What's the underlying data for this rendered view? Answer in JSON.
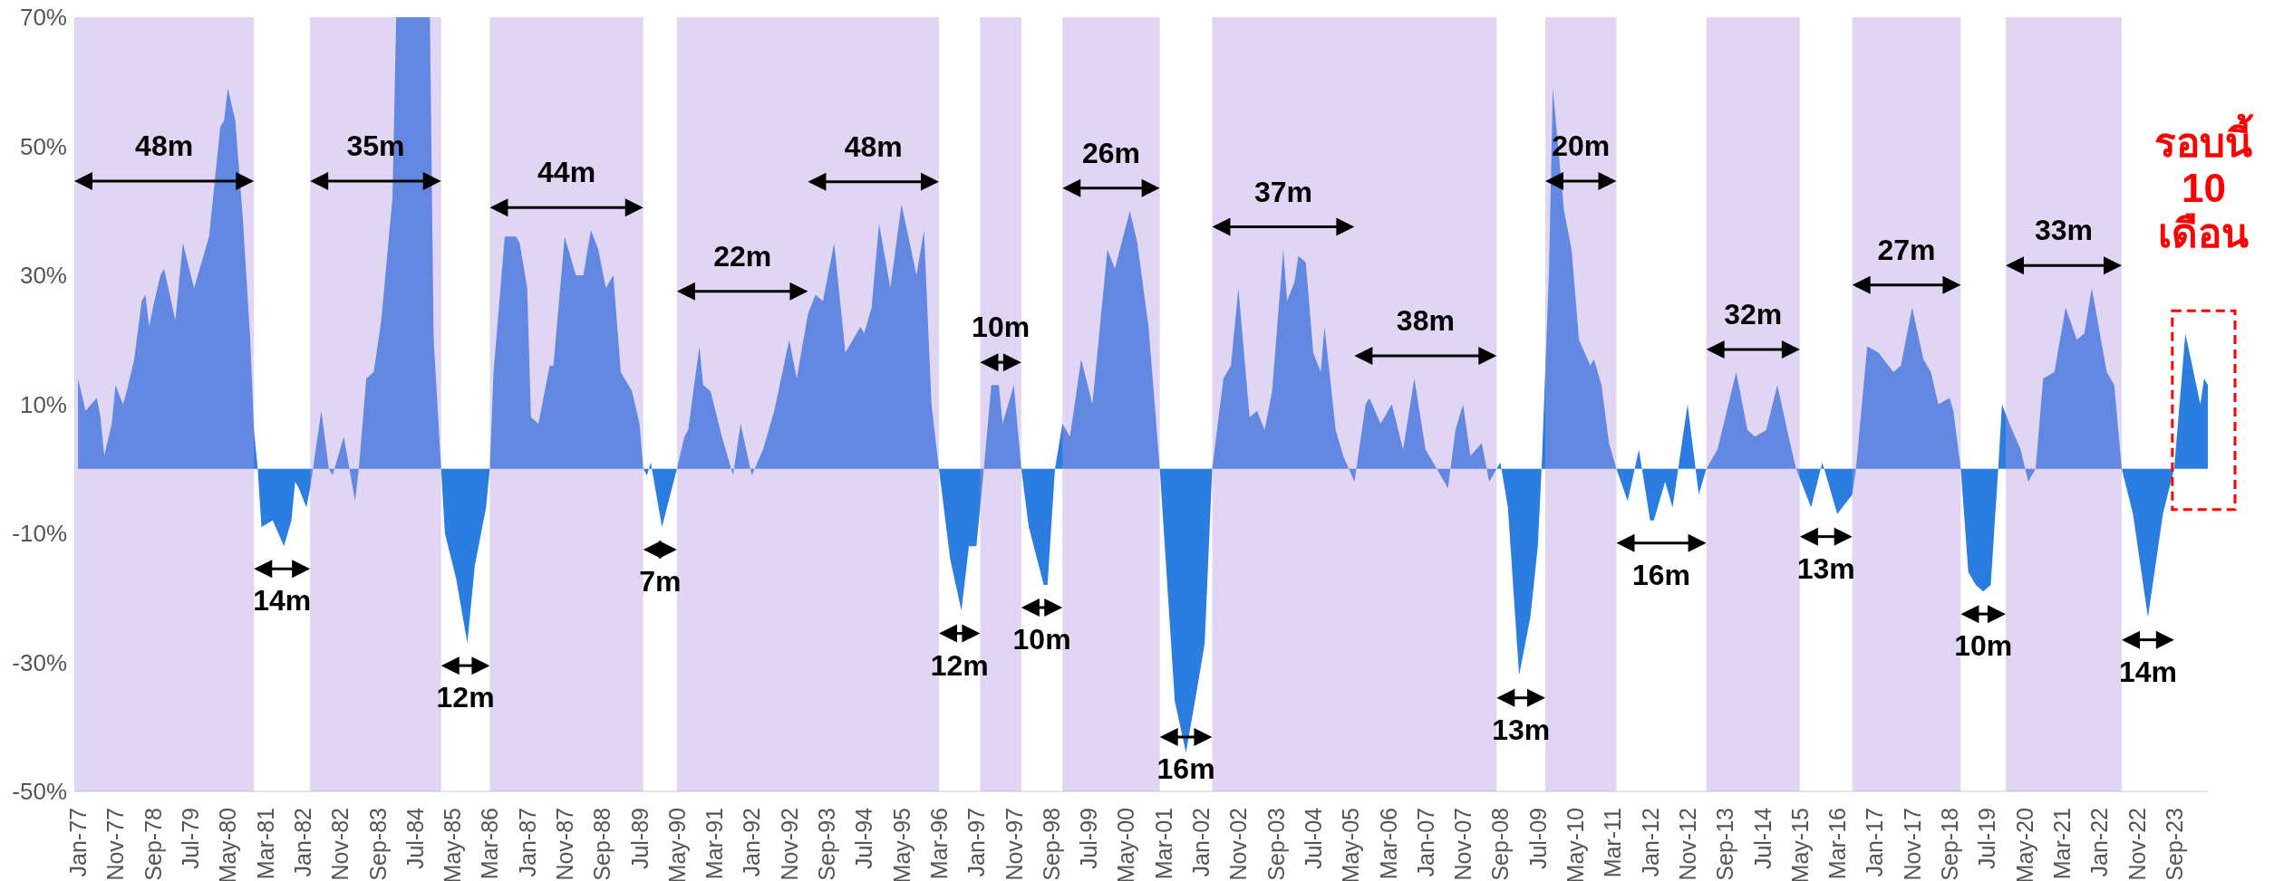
{
  "chart_data": {
    "type": "area",
    "color": "#2b7de0",
    "x": [
      "1977-01",
      "1977-03",
      "1977-06",
      "1977-07",
      "1977-08",
      "1977-10",
      "1977-11",
      "1978-01",
      "1978-02",
      "1978-04",
      "1978-06",
      "1978-07",
      "1978-08",
      "1978-09",
      "1978-11",
      "1978-12",
      "1979-03",
      "1979-05",
      "1979-08",
      "1979-09",
      "1979-12",
      "1980-03",
      "1980-04",
      "1980-05",
      "1980-07",
      "1980-09",
      "1980-11",
      "1980-12",
      "1981-01",
      "1981-02",
      "1981-05",
      "1981-08",
      "1981-10",
      "1981-11",
      "1981-12",
      "1982-02",
      "1982-03",
      "1982-06",
      "1982-08",
      "1982-09",
      "1982-12",
      "1983-03",
      "1983-04",
      "1983-06",
      "1983-08",
      "1983-10",
      "1984-01",
      "1984-02",
      "1984-11",
      "1984-12",
      "1985-02",
      "1985-03",
      "1985-06",
      "1985-09",
      "1985-11",
      "1986-02",
      "1986-03",
      "1986-04",
      "1986-07",
      "1986-10",
      "1986-11",
      "1987-01",
      "1987-02",
      "1987-04",
      "1987-07",
      "1987-08",
      "1987-11",
      "1988-02",
      "1988-04",
      "1988-06",
      "1988-08",
      "1988-10",
      "1988-12",
      "1989-02",
      "1989-05",
      "1989-07",
      "1989-08",
      "1989-09",
      "1989-10",
      "1990-01",
      "1990-05",
      "1990-07",
      "1990-08",
      "1990-11",
      "1990-12",
      "1991-02",
      "1991-05",
      "1991-08",
      "1991-10",
      "1992-01",
      "1992-04",
      "1992-07",
      "1992-11",
      "1993-01",
      "1993-04",
      "1993-06",
      "1993-08",
      "1993-11",
      "1994-02",
      "1994-06",
      "1994-07",
      "1994-09",
      "1994-11",
      "1995-02",
      "1995-05",
      "1995-09",
      "1995-11",
      "1996-01",
      "1996-03",
      "1996-06",
      "1996-09",
      "1996-11",
      "1997-01",
      "1997-03",
      "1997-05",
      "1997-07",
      "1997-08",
      "1997-11",
      "1998-01",
      "1998-03",
      "1998-07",
      "1998-08",
      "1998-10",
      "1998-12",
      "1999-02",
      "1999-05",
      "1999-08",
      "1999-12",
      "2000-02",
      "2000-06",
      "2000-08",
      "2000-11",
      "2001-02",
      "2001-06",
      "2001-09",
      "2001-12",
      "2002-02",
      "2002-04",
      "2002-07",
      "2002-09",
      "2002-11",
      "2003-02",
      "2003-04",
      "2003-06",
      "2003-08",
      "2003-11",
      "2003-12",
      "2004-02",
      "2004-03",
      "2004-05",
      "2004-07",
      "2004-09",
      "2004-10",
      "2005-01",
      "2005-03",
      "2005-06",
      "2005-09",
      "2005-10",
      "2006-01",
      "2006-04",
      "2006-07",
      "2006-10",
      "2007-01",
      "2007-04",
      "2007-07",
      "2007-09",
      "2007-11",
      "2008-01",
      "2008-04",
      "2008-06",
      "2008-09",
      "2008-11",
      "2009-02",
      "2009-05",
      "2009-07",
      "2009-08",
      "2009-10",
      "2009-11",
      "2010-02",
      "2010-04",
      "2010-06",
      "2010-09",
      "2010-10",
      "2010-12",
      "2011-02",
      "2011-04",
      "2011-07",
      "2011-10",
      "2012-01",
      "2012-02",
      "2012-05",
      "2012-07",
      "2012-11",
      "2013-02",
      "2013-04",
      "2013-07",
      "2013-12",
      "2014-03",
      "2014-05",
      "2014-08",
      "2014-11",
      "2015-02",
      "2015-04",
      "2015-08",
      "2015-11",
      "2016-03",
      "2016-07",
      "2016-08",
      "2016-11",
      "2017-02",
      "2017-06",
      "2017-08",
      "2017-11",
      "2018-02",
      "2018-04",
      "2018-06",
      "2018-09",
      "2018-10",
      "2018-12",
      "2019-02",
      "2019-04",
      "2019-06",
      "2019-08",
      "2019-10",
      "2019-11",
      "2020-01",
      "2020-04",
      "2020-06",
      "2020-08",
      "2020-10",
      "2021-01",
      "2021-04",
      "2021-07",
      "2021-09",
      "2021-11",
      "2022-03",
      "2022-05",
      "2022-07",
      "2022-10",
      "2023-02",
      "2023-06",
      "2023-09",
      "2023-12",
      "2024-04",
      "2024-05",
      "2024-06"
    ],
    "values": [
      14,
      9,
      11,
      8,
      2,
      7,
      13,
      10,
      12,
      17,
      26,
      27,
      22,
      25,
      30,
      31,
      23,
      35,
      28,
      30,
      36,
      53,
      54,
      59,
      54,
      39,
      20,
      6,
      0,
      -9,
      -8,
      -12,
      -8,
      -2,
      -3,
      -6,
      -3,
      9,
      0,
      -1,
      5,
      -5,
      0,
      14,
      15,
      23,
      42,
      70,
      70,
      20,
      0,
      -10,
      -17,
      -27,
      -15,
      -6,
      0,
      15,
      36,
      36,
      35,
      28,
      8,
      7,
      16,
      16,
      36,
      30,
      30,
      37,
      34,
      28,
      30,
      15,
      12,
      7,
      0,
      -1,
      1,
      -9,
      0,
      5,
      6,
      19,
      13,
      12,
      5,
      -1,
      7,
      -1,
      3,
      9,
      20,
      14,
      24,
      27,
      26,
      35,
      18,
      22,
      21,
      25,
      38,
      28,
      41,
      30,
      37,
      10,
      0,
      -14,
      -22,
      -12,
      -12,
      0,
      13,
      13,
      7,
      13,
      0,
      -9,
      -18,
      -18,
      0,
      7,
      5,
      17,
      10,
      34,
      31,
      40,
      35,
      22,
      0,
      -36,
      -44,
      -34,
      -27,
      0,
      14,
      16,
      28,
      8,
      9,
      6,
      12,
      34,
      26,
      29,
      33,
      32,
      18,
      15,
      22,
      6,
      2,
      -2,
      10,
      11,
      7,
      10,
      3,
      14,
      3,
      0,
      -3,
      6,
      10,
      2,
      4,
      -2,
      1,
      -6,
      -32,
      -23,
      -12,
      0,
      31,
      59,
      40,
      34,
      20,
      16,
      17,
      13,
      4,
      0,
      -5,
      3,
      -8,
      -8,
      -2,
      -6,
      10,
      -4,
      0,
      3,
      15,
      6,
      5,
      6,
      13,
      5,
      0,
      -6,
      1,
      -7,
      -4,
      0,
      19,
      18,
      15,
      16,
      25,
      17,
      15,
      10,
      11,
      9,
      0,
      -16,
      -18,
      -19,
      -18,
      0,
      10,
      7,
      3,
      -2,
      0,
      14,
      15,
      25,
      20,
      21,
      28,
      15,
      13,
      0,
      -7,
      -23,
      -7,
      0,
      21,
      10,
      14,
      13
    ],
    "xticks": [
      {
        "value": "1977-01",
        "label": "Jan-77"
      },
      {
        "value": "1977-11",
        "label": "Nov-77"
      },
      {
        "value": "1978-09",
        "label": "Sep-78"
      },
      {
        "value": "1979-07",
        "label": "Jul-79"
      },
      {
        "value": "1980-05",
        "label": "May-80"
      },
      {
        "value": "1981-03",
        "label": "Mar-81"
      },
      {
        "value": "1982-01",
        "label": "Jan-82"
      },
      {
        "value": "1982-11",
        "label": "Nov-82"
      },
      {
        "value": "1983-09",
        "label": "Sep-83"
      },
      {
        "value": "1984-07",
        "label": "Jul-84"
      },
      {
        "value": "1985-05",
        "label": "May-85"
      },
      {
        "value": "1986-03",
        "label": "Mar-86"
      },
      {
        "value": "1987-01",
        "label": "Jan-87"
      },
      {
        "value": "1987-11",
        "label": "Nov-87"
      },
      {
        "value": "1988-09",
        "label": "Sep-88"
      },
      {
        "value": "1989-07",
        "label": "Jul-89"
      },
      {
        "value": "1990-05",
        "label": "May-90"
      },
      {
        "value": "1991-03",
        "label": "Mar-91"
      },
      {
        "value": "1992-01",
        "label": "Jan-92"
      },
      {
        "value": "1992-11",
        "label": "Nov-92"
      },
      {
        "value": "1993-09",
        "label": "Sep-93"
      },
      {
        "value": "1994-07",
        "label": "Jul-94"
      },
      {
        "value": "1995-05",
        "label": "May-95"
      },
      {
        "value": "1996-03",
        "label": "Mar-96"
      },
      {
        "value": "1997-01",
        "label": "Jan-97"
      },
      {
        "value": "1997-11",
        "label": "Nov-97"
      },
      {
        "value": "1998-09",
        "label": "Sep-98"
      },
      {
        "value": "1999-07",
        "label": "Jul-99"
      },
      {
        "value": "2000-05",
        "label": "May-00"
      },
      {
        "value": "2001-03",
        "label": "Mar-01"
      },
      {
        "value": "2002-01",
        "label": "Jan-02"
      },
      {
        "value": "2002-11",
        "label": "Nov-02"
      },
      {
        "value": "2003-09",
        "label": "Sep-03"
      },
      {
        "value": "2004-07",
        "label": "Jul-04"
      },
      {
        "value": "2005-05",
        "label": "May-05"
      },
      {
        "value": "2006-03",
        "label": "Mar-06"
      },
      {
        "value": "2007-01",
        "label": "Jan-07"
      },
      {
        "value": "2007-11",
        "label": "Nov-07"
      },
      {
        "value": "2008-09",
        "label": "Sep-08"
      },
      {
        "value": "2009-07",
        "label": "Jul-09"
      },
      {
        "value": "2010-05",
        "label": "May-10"
      },
      {
        "value": "2011-03",
        "label": "Mar-11"
      },
      {
        "value": "2012-01",
        "label": "Jan-12"
      },
      {
        "value": "2012-11",
        "label": "Nov-12"
      },
      {
        "value": "2013-09",
        "label": "Sep-13"
      },
      {
        "value": "2014-07",
        "label": "Jul-14"
      },
      {
        "value": "2015-05",
        "label": "May-15"
      },
      {
        "value": "2016-03",
        "label": "Mar-16"
      },
      {
        "value": "2017-01",
        "label": "Jan-17"
      },
      {
        "value": "2017-11",
        "label": "Nov-17"
      },
      {
        "value": "2018-09",
        "label": "Sep-18"
      },
      {
        "value": "2019-07",
        "label": "Jul-19"
      },
      {
        "value": "2020-05",
        "label": "May-20"
      },
      {
        "value": "2021-03",
        "label": "Mar-21"
      },
      {
        "value": "2022-01",
        "label": "Jan-22"
      },
      {
        "value": "2022-11",
        "label": "Nov-22"
      },
      {
        "value": "2023-09",
        "label": "Sep-23"
      }
    ],
    "ylim": [
      -50,
      70
    ],
    "yticks": [
      {
        "value": -50,
        "label": "-50%"
      },
      {
        "value": -30,
        "label": "-30%"
      },
      {
        "value": -10,
        "label": "-10%"
      },
      {
        "value": 10,
        "label": "10%"
      },
      {
        "value": 30,
        "label": "30%"
      },
      {
        "value": 50,
        "label": "50%"
      },
      {
        "value": 70,
        "label": "70%"
      }
    ],
    "bands": [
      {
        "axis": "x",
        "from": "1976-12",
        "to": "1980-12",
        "color": "#b398e2"
      },
      {
        "axis": "x",
        "from": "1982-03",
        "to": "1985-02",
        "color": "#b398e2"
      },
      {
        "axis": "x",
        "from": "1986-03",
        "to": "1989-08",
        "color": "#b398e2"
      },
      {
        "axis": "x",
        "from": "1990-05",
        "to": "1996-03",
        "color": "#b398e2"
      },
      {
        "axis": "x",
        "from": "1997-02",
        "to": "1998-01",
        "color": "#b398e2"
      },
      {
        "axis": "x",
        "from": "1998-12",
        "to": "2001-02",
        "color": "#b398e2"
      },
      {
        "axis": "x",
        "from": "2002-04",
        "to": "2008-08",
        "color": "#b398e2"
      },
      {
        "axis": "x",
        "from": "2009-09",
        "to": "2011-04",
        "color": "#b398e2"
      },
      {
        "axis": "x",
        "from": "2013-04",
        "to": "2015-05",
        "color": "#b398e2"
      },
      {
        "axis": "x",
        "from": "2016-07",
        "to": "2018-12",
        "color": "#b398e2"
      },
      {
        "axis": "x",
        "from": "2019-12",
        "to": "2022-07",
        "color": "#b398e2"
      }
    ],
    "xlim": [
      "1976-12",
      "2024-06"
    ],
    "annotations": [
      "48m",
      "14m",
      "35m",
      "12m",
      "44m",
      "7m",
      "22m",
      "48m",
      "12m",
      "10m",
      "10m",
      "26m",
      "16m",
      "37m",
      "38m",
      "13m",
      "20m",
      "16m",
      "32m",
      "13m",
      "27m",
      "10m",
      "33m",
      "14m",
      "รอบนี้\n10\nเดือน"
    ]
  }
}
